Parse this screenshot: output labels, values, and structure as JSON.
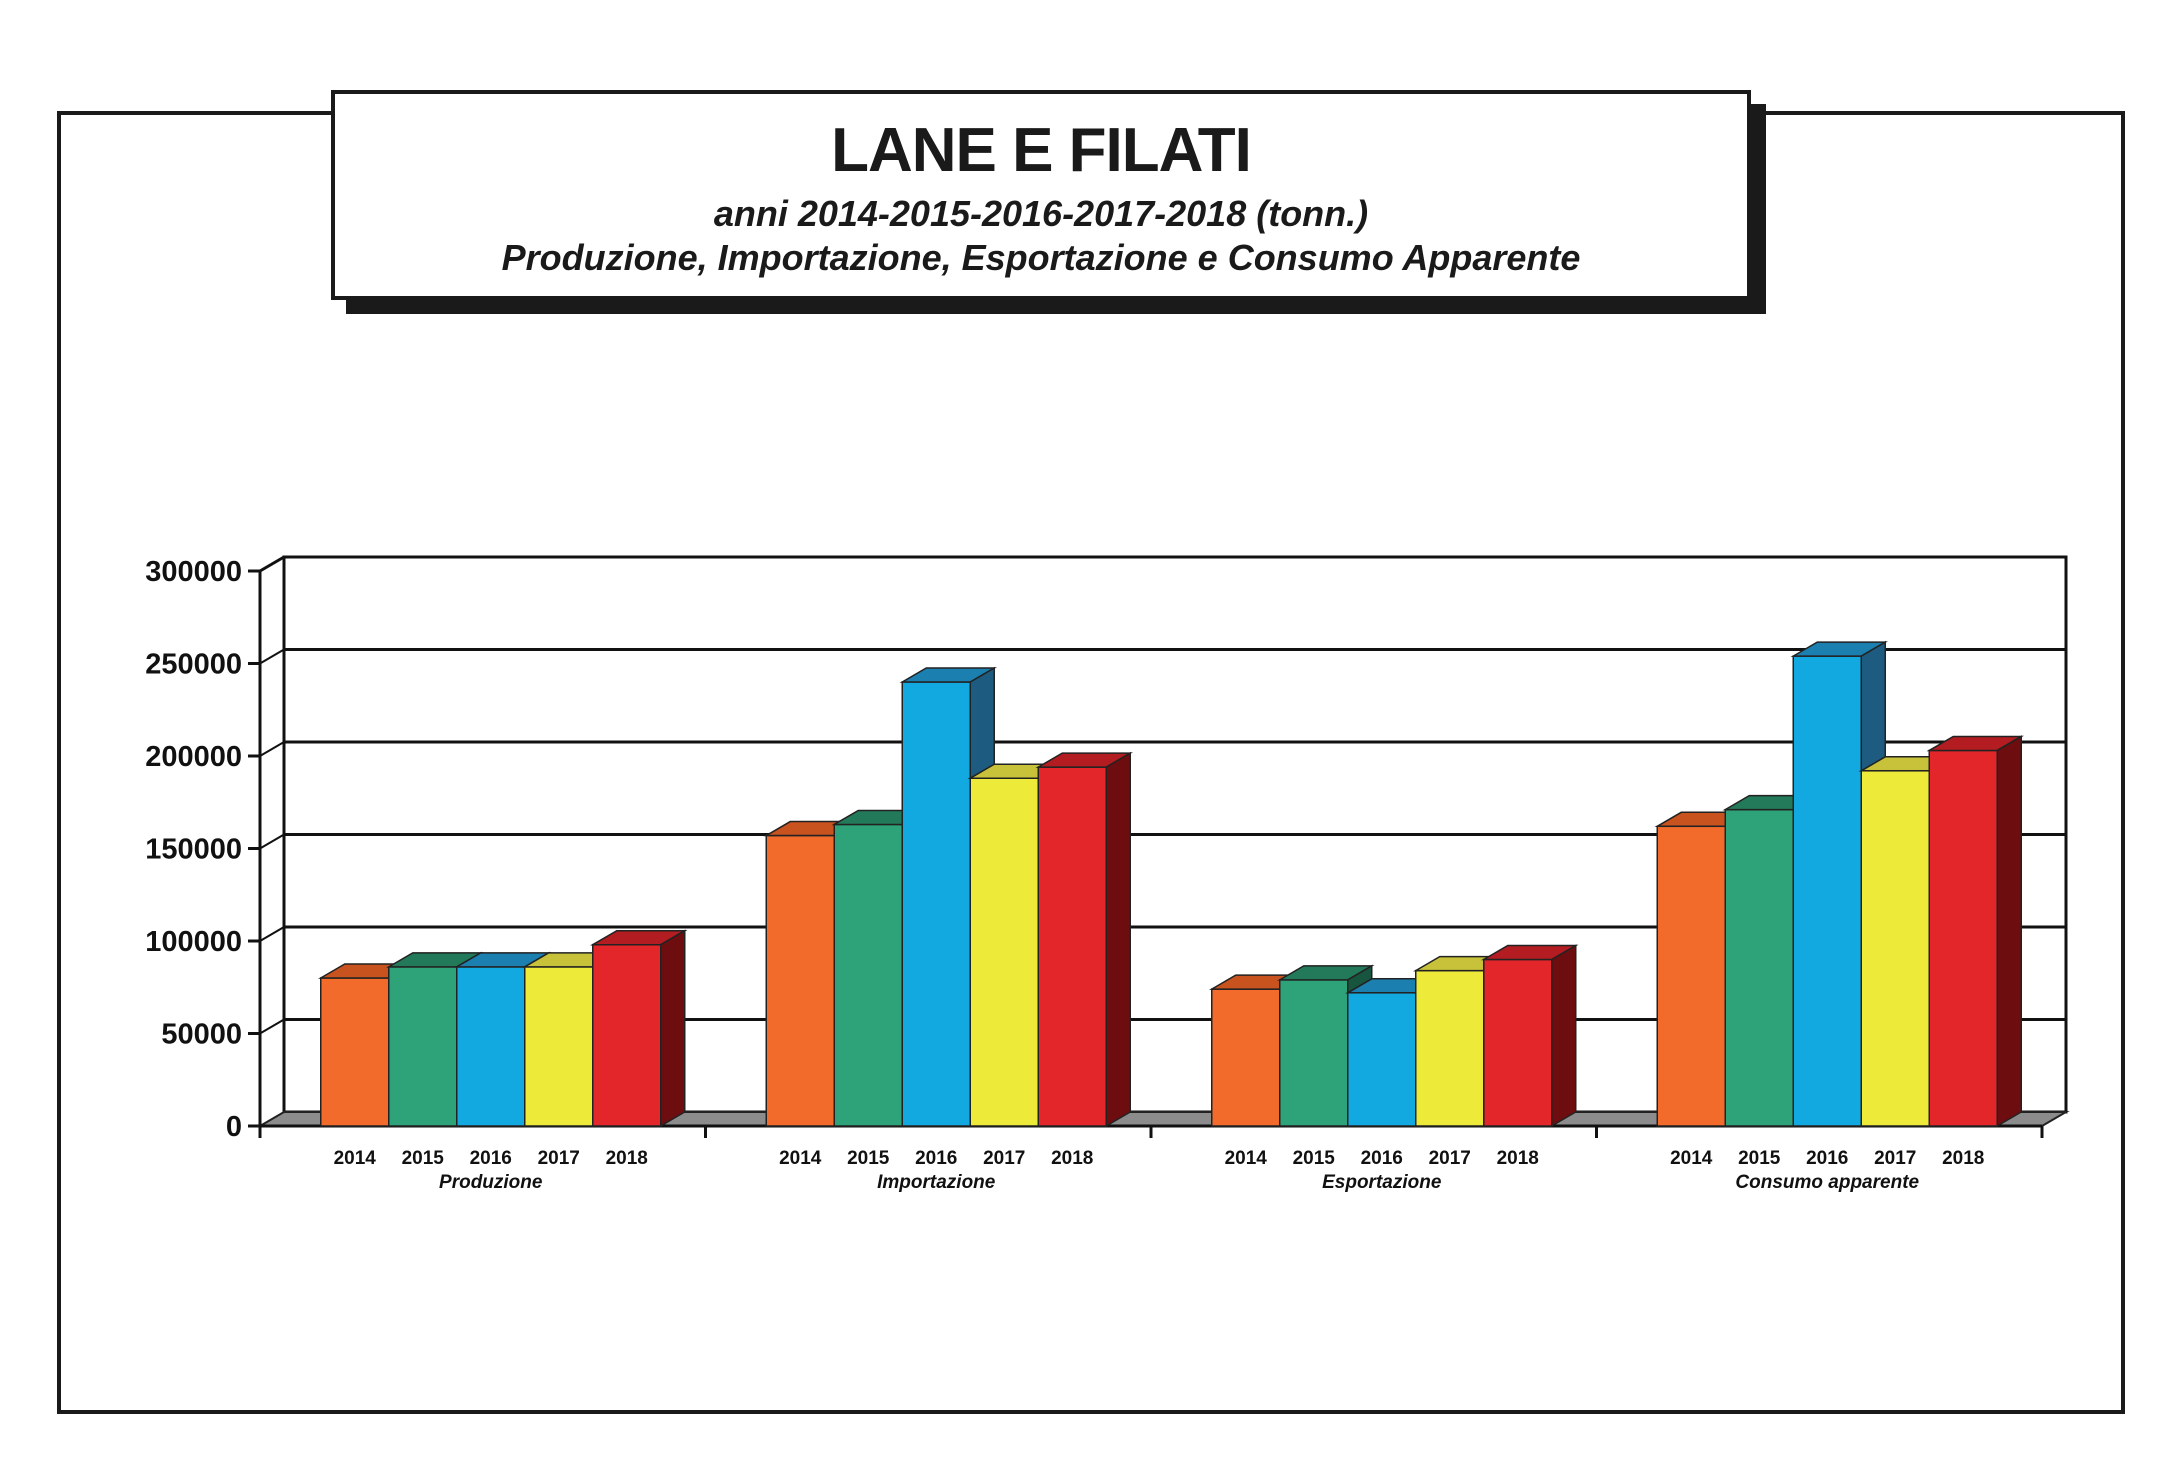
{
  "chart_data": {
    "type": "bar",
    "title": "LANE E FILATI",
    "subtitle": "anni 2014-2015-2016-2017-2018 (tonn.)",
    "subtitle2": "Produzione, Importazione, Esportazione e Consumo Apparente",
    "groups": [
      "Produzione",
      "Importazione",
      "Esportazione",
      "Consumo apparente"
    ],
    "series": [
      {
        "name": "2014",
        "values": [
          80000,
          157000,
          74000,
          162000
        ]
      },
      {
        "name": "2015",
        "values": [
          86000,
          163000,
          79000,
          171000
        ]
      },
      {
        "name": "2016",
        "values": [
          86000,
          240000,
          72000,
          254000
        ]
      },
      {
        "name": "2017",
        "values": [
          86000,
          188000,
          84000,
          192000
        ]
      },
      {
        "name": "2018",
        "values": [
          98000,
          194000,
          90000,
          203000
        ]
      }
    ],
    "ylim": [
      0,
      300000
    ],
    "yticks": [
      "0",
      "50000",
      "100000",
      "150000",
      "200000",
      "250000",
      "300000"
    ],
    "grid": true,
    "style": "3d-bar",
    "colors": {
      "2014": {
        "front": "#f26b2b",
        "top": "#c9531f",
        "side": "#8a3514"
      },
      "2015": {
        "front": "#2ea37a",
        "top": "#227a5a",
        "side": "#17553f"
      },
      "2016": {
        "front": "#12a8e0",
        "top": "#1b7fb0",
        "side": "#1d5b80"
      },
      "2017": {
        "front": "#eeea3a",
        "top": "#c8c23a",
        "side": "#8f8a22"
      },
      "2018": {
        "front": "#e2262a",
        "top": "#b31c20",
        "side": "#6e0d10"
      }
    },
    "floor_color": "#8c8c8c"
  }
}
